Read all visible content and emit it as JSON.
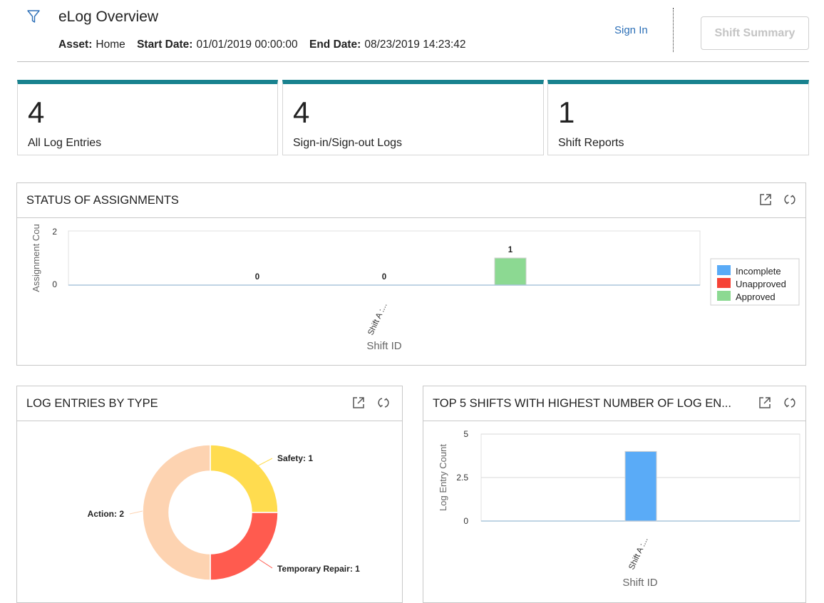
{
  "header": {
    "title": "eLog Overview",
    "asset_label": "Asset:",
    "asset_value": "Home",
    "start_label": "Start Date:",
    "start_value": "01/01/2019 00:00:00",
    "end_label": "End Date:",
    "end_value": "08/23/2019 14:23:42",
    "sign_in": "Sign In",
    "shift_summary": "Shift Summary"
  },
  "kpis": [
    {
      "value": "4",
      "label": "All Log Entries"
    },
    {
      "value": "4",
      "label": "Sign-in/Sign-out Logs"
    },
    {
      "value": "1",
      "label": "Shift Reports"
    }
  ],
  "colors": {
    "accent": "#19828f",
    "incomplete": "#5aabf7",
    "unapproved": "#f64236",
    "approved": "#8cd992",
    "safety": "#ffdc4f",
    "temporary_repair": "#ff5b4f",
    "action": "#fdd3b1",
    "bar_blue": "#5aabf7"
  },
  "icons": {
    "filter": "filter-icon",
    "expand": "open-in-new-window-icon",
    "refresh": "refresh-icon"
  },
  "panels": {
    "status": {
      "title": "STATUS OF ASSIGNMENTS"
    },
    "log_types": {
      "title": "LOG ENTRIES BY TYPE"
    },
    "top_shifts": {
      "title": "TOP 5 SHIFTS WITH HIGHEST NUMBER OF LOG EN..."
    }
  },
  "chart_data": [
    {
      "type": "bar",
      "title": "STATUS OF ASSIGNMENTS",
      "xlabel": "Shift ID",
      "ylabel": "Assignment Cou",
      "categories": [
        "Shift A :..."
      ],
      "series": [
        {
          "name": "Incomplete",
          "values": [
            0
          ]
        },
        {
          "name": "Unapproved",
          "values": [
            0
          ]
        },
        {
          "name": "Approved",
          "values": [
            1
          ]
        }
      ],
      "ylim": [
        0,
        2
      ],
      "yticks": [
        "0",
        "2"
      ],
      "legend": "right",
      "grid": false
    },
    {
      "type": "pie",
      "title": "LOG ENTRIES BY TYPE",
      "donut": true,
      "slices": [
        {
          "label": "Safety",
          "value": 1,
          "display": "Safety: 1"
        },
        {
          "label": "Temporary Repair",
          "value": 1,
          "display": "Temporary Repair: 1"
        },
        {
          "label": "Action",
          "value": 2,
          "display": "Action: 2"
        }
      ]
    },
    {
      "type": "bar",
      "title": "TOP 5 SHIFTS WITH HIGHEST NUMBER OF LOG EN...",
      "xlabel": "Shift ID",
      "ylabel": "Log Entry Count",
      "categories": [
        "Shift A :..."
      ],
      "values": [
        4
      ],
      "ylim": [
        0,
        5
      ],
      "yticks": [
        "0",
        "2.5",
        "5"
      ],
      "grid": true
    }
  ]
}
